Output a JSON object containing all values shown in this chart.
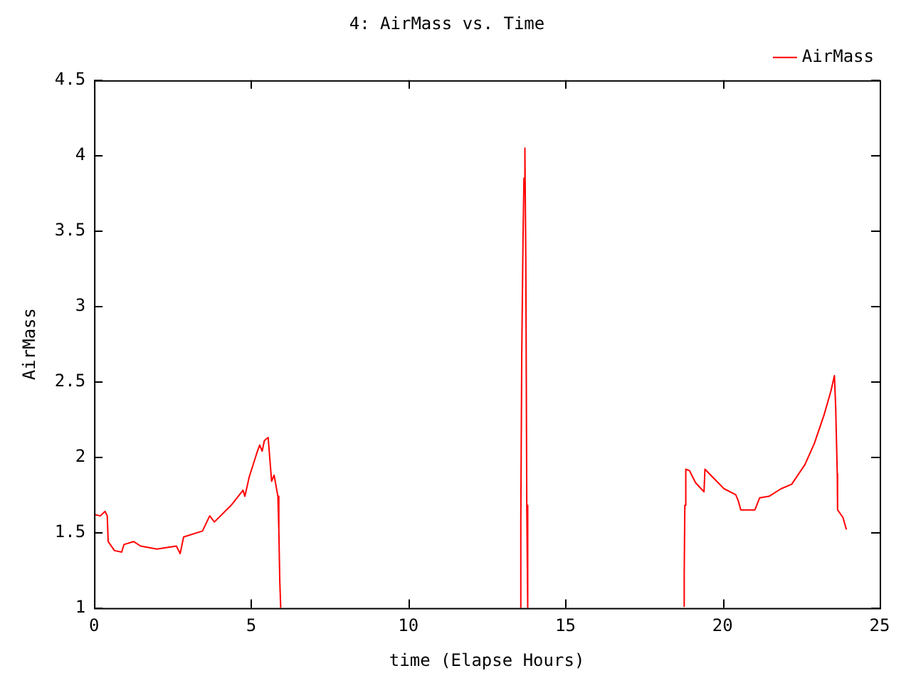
{
  "chart_data": {
    "type": "line",
    "title": "4: AirMass vs. Time",
    "xlabel": "time (Elapse Hours)",
    "ylabel": "AirMass",
    "xlim": [
      0,
      25
    ],
    "xticks": [
      0,
      5,
      10,
      15,
      20,
      25
    ],
    "ylim": [
      1,
      4.5
    ],
    "yticks": [
      1,
      1.5,
      2,
      2.5,
      3,
      3.5,
      4,
      4.5
    ],
    "grid": false,
    "legend": "top right",
    "marker": "none",
    "line_style": "solid",
    "x": [
      0,
      0.2,
      0.35,
      0.42,
      0.45,
      0.65,
      0.88,
      0.95,
      1.26,
      1.48,
      2.0,
      2.62,
      2.74,
      2.85,
      3.45,
      3.68,
      3.83,
      4.36,
      4.74,
      4.8,
      4.94,
      5.2,
      5.27,
      5.35,
      5.42,
      5.54,
      5.65,
      5.73,
      5.85,
      5.88,
      5.91,
      5.94,
      9.5,
      13.56,
      13.58,
      13.61,
      13.65,
      13.68,
      13.71,
      13.74,
      13.77,
      13.8,
      16.5,
      18.76,
      18.78,
      18.8,
      18.83,
      18.95,
      19.14,
      19.41,
      19.44,
      19.67,
      20.05,
      20.42,
      20.5,
      20.58,
      21.03,
      21.18,
      21.48,
      21.86,
      22.2,
      22.62,
      22.92,
      23.23,
      23.45,
      23.56,
      23.6,
      23.65,
      23.66,
      23.83,
      23.94
    ],
    "series": [
      {
        "name": "AirMass",
        "color": "#ff0000",
        "values": [
          1.62,
          1.61,
          1.64,
          1.61,
          1.44,
          1.38,
          1.37,
          1.42,
          1.44,
          1.41,
          1.39,
          1.41,
          1.36,
          1.47,
          1.51,
          1.61,
          1.57,
          1.68,
          1.78,
          1.74,
          1.87,
          2.04,
          2.08,
          2.04,
          2.11,
          2.13,
          1.84,
          1.88,
          1.74,
          1.52,
          1.18,
          1.0,
          null,
          1.0,
          1.57,
          2.68,
          3.44,
          3.85,
          4.05,
          3.29,
          1.68,
          1.0,
          null,
          1.01,
          1.23,
          1.68,
          1.92,
          1.91,
          1.83,
          1.77,
          1.92,
          1.87,
          1.79,
          1.75,
          1.71,
          1.65,
          1.65,
          1.73,
          1.74,
          1.79,
          1.82,
          1.95,
          2.09,
          2.28,
          2.44,
          2.54,
          2.33,
          1.89,
          1.65,
          1.6,
          1.52
        ]
      }
    ]
  }
}
